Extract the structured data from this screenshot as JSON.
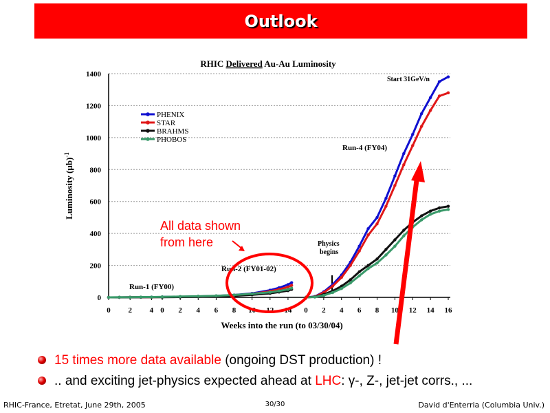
{
  "slide": {
    "title": "Outlook",
    "bullets": [
      {
        "prefix_red": "15 times more data available",
        "rest": " (ongoing DST production) !"
      },
      {
        "prefix": ".. and exciting jet-physics expected ahead at ",
        "red": "LHC",
        "rest": ": γ-, Z-, jet-jet corrs., ..."
      }
    ],
    "annotation": {
      "line1": "All data shown",
      "line2": "from here"
    },
    "footer": {
      "left": "RHIC-France, Etretat, June 29th, 2005",
      "center": "30/30",
      "right": "David d'Enterria (Columbia Univ.)"
    },
    "colors": {
      "title_bar": "#ff0000",
      "accent": "#ff0000",
      "phenix": "#1010d0",
      "star": "#e01818",
      "brahms": "#111111",
      "phobos": "#3a9a6a"
    }
  },
  "chart_data": {
    "type": "line",
    "title_parts": [
      "RHIC ",
      "Delivered",
      " Au-Au Luminosity"
    ],
    "title": "RHIC Delivered Au-Au Luminosity",
    "xlabel": "Weeks into the run  (to 03/30/04)",
    "ylabel": "Luminosity (μb)",
    "ylabel_sup": "-1",
    "ylim": [
      0,
      1400
    ],
    "yticks": [
      0,
      200,
      400,
      600,
      800,
      1000,
      1200,
      1400
    ],
    "x_segments": [
      {
        "label": "Run-1 (FY00)",
        "ticks": [
          0,
          2,
          4
        ],
        "range": [
          0,
          5
        ]
      },
      {
        "label": "Run-2 (FY01-02)",
        "ticks": [
          0,
          2,
          4,
          6,
          8,
          10,
          12,
          14
        ],
        "range": [
          0,
          15
        ]
      },
      {
        "label": "Run-4 (FY04)",
        "ticks": [
          0,
          2,
          4,
          6,
          8,
          10,
          12,
          14,
          16
        ],
        "range": [
          0,
          16
        ]
      }
    ],
    "annotations": {
      "physics": [
        "Physics",
        "begins"
      ],
      "start": "Start 31GeV/n"
    },
    "legend": {
      "position": "top-left",
      "entries": [
        "PHENIX",
        "STAR",
        "BRAHMS",
        "PHOBOS"
      ]
    },
    "grid": {
      "horizontal": true,
      "vertical": false
    },
    "series": [
      {
        "name": "PHENIX",
        "color": "#1010d0",
        "segments": [
          {
            "seg": 0,
            "x": [
              0,
              1,
              2,
              3,
              4,
              5
            ],
            "y": [
              0,
              0,
              1,
              1,
              2,
              2
            ]
          },
          {
            "seg": 1,
            "x": [
              0,
              2,
              4,
              6,
              8,
              10,
              12,
              13,
              14,
              14.4
            ],
            "y": [
              3,
              4,
              6,
              9,
              15,
              25,
              45,
              60,
              80,
              92
            ]
          },
          {
            "seg": 2,
            "x": [
              0,
              1,
              2,
              3,
              4,
              5,
              6,
              7,
              8,
              9,
              10,
              11,
              12,
              13,
              14,
              15,
              16
            ],
            "y": [
              0,
              5,
              35,
              80,
              140,
              220,
              320,
              430,
              500,
              620,
              760,
              900,
              1020,
              1150,
              1250,
              1350,
              1380
            ]
          }
        ]
      },
      {
        "name": "STAR",
        "color": "#e01818",
        "segments": [
          {
            "seg": 0,
            "x": [
              0,
              1,
              2,
              3,
              4,
              5
            ],
            "y": [
              0,
              0,
              1,
              1,
              1,
              2
            ]
          },
          {
            "seg": 1,
            "x": [
              0,
              2,
              4,
              6,
              8,
              10,
              12,
              13,
              14,
              14.4
            ],
            "y": [
              2,
              3,
              5,
              8,
              13,
              22,
              38,
              50,
              65,
              75
            ]
          },
          {
            "seg": 2,
            "x": [
              0,
              1,
              2,
              3,
              4,
              5,
              6,
              7,
              8,
              9,
              10,
              11,
              12,
              13,
              14,
              15,
              16
            ],
            "y": [
              0,
              4,
              30,
              70,
              125,
              200,
              290,
              390,
              460,
              570,
              700,
              830,
              950,
              1070,
              1170,
              1260,
              1280
            ]
          }
        ]
      },
      {
        "name": "BRAHMS",
        "color": "#111111",
        "segments": [
          {
            "seg": 0,
            "x": [
              0,
              1,
              2,
              3,
              4,
              5
            ],
            "y": [
              0,
              0,
              0,
              1,
              1,
              1
            ]
          },
          {
            "seg": 1,
            "x": [
              0,
              2,
              4,
              6,
              8,
              10,
              12,
              13,
              14,
              14.4
            ],
            "y": [
              1,
              2,
              4,
              6,
              10,
              16,
              25,
              33,
              42,
              50
            ]
          },
          {
            "seg": 2,
            "x": [
              0,
              1,
              2,
              3,
              4,
              5,
              6,
              7,
              8,
              9,
              10,
              11,
              12,
              13,
              14,
              15,
              16
            ],
            "y": [
              0,
              3,
              18,
              40,
              70,
              110,
              160,
              200,
              240,
              300,
              360,
              420,
              470,
              510,
              540,
              560,
              570
            ]
          }
        ]
      },
      {
        "name": "PHOBOS",
        "color": "#3a9a6a",
        "segments": [
          {
            "seg": 0,
            "x": [
              0,
              1,
              2,
              3,
              4,
              5
            ],
            "y": [
              0,
              1,
              1,
              2,
              2,
              3
            ]
          },
          {
            "seg": 1,
            "x": [
              0,
              2,
              4,
              6,
              8,
              10,
              12,
              13,
              14,
              14.4
            ],
            "y": [
              3,
              5,
              7,
              10,
              15,
              22,
              32,
              40,
              50,
              58
            ]
          },
          {
            "seg": 2,
            "x": [
              0,
              1,
              2,
              3,
              4,
              5,
              6,
              7,
              8,
              9,
              10,
              11,
              12,
              13,
              14,
              15,
              16
            ],
            "y": [
              0,
              2,
              12,
              30,
              55,
              90,
              135,
              180,
              215,
              265,
              320,
              385,
              440,
              485,
              520,
              540,
              550
            ]
          }
        ]
      }
    ]
  }
}
